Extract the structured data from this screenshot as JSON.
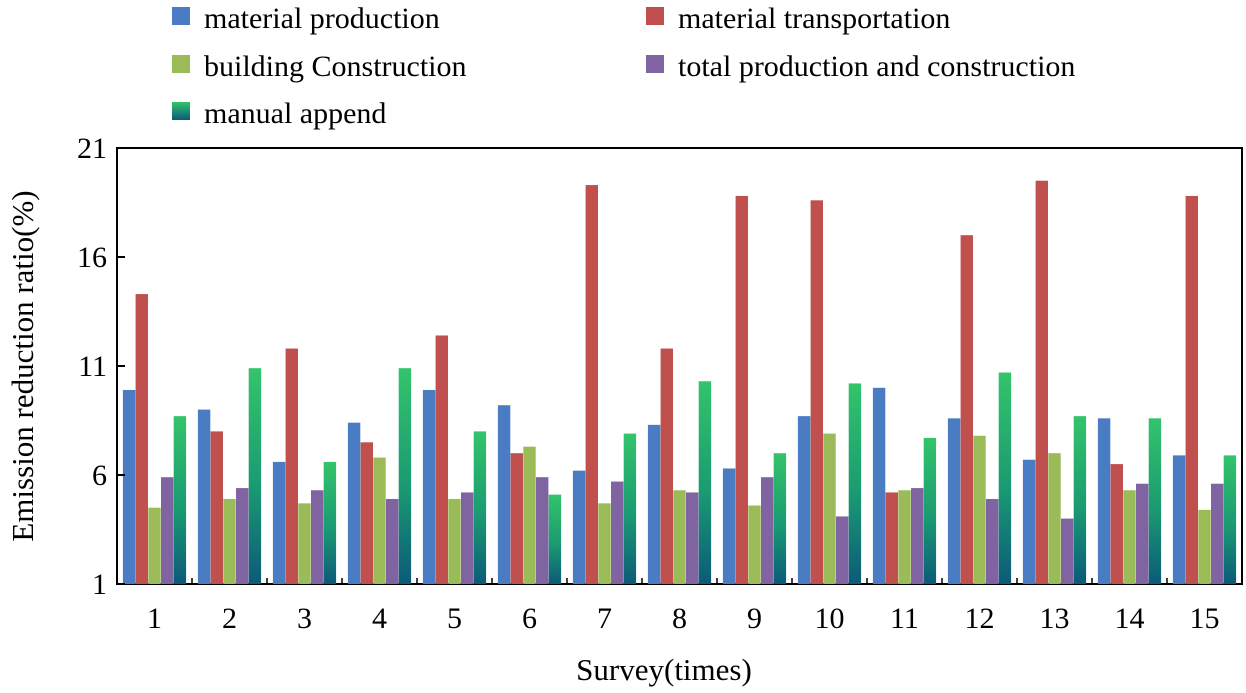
{
  "chart_data": {
    "type": "bar",
    "title": "",
    "xlabel": "Survey(times)",
    "ylabel": "Emission reduction ratio(%)",
    "ylim": [
      1,
      21
    ],
    "yticks": [
      "1",
      "6",
      "11",
      "16",
      "21"
    ],
    "categories": [
      "1",
      "2",
      "3",
      "4",
      "5",
      "6",
      "7",
      "8",
      "9",
      "10",
      "11",
      "12",
      "13",
      "14",
      "15"
    ],
    "legend_position": "top",
    "series": [
      {
        "name": "material production",
        "color": "#4a7cc4",
        "values": [
          9.9,
          9.0,
          6.6,
          8.4,
          9.9,
          9.2,
          6.2,
          8.3,
          6.3,
          8.7,
          10.0,
          8.6,
          6.7,
          8.6,
          6.9
        ]
      },
      {
        "name": "material transportation",
        "color": "#c0504d",
        "values": [
          14.3,
          8.0,
          11.8,
          7.5,
          12.4,
          7.0,
          19.3,
          11.8,
          18.8,
          18.6,
          5.2,
          17.0,
          19.5,
          6.5,
          18.8
        ]
      },
      {
        "name": "building Construction",
        "color": "#9bbb59",
        "values": [
          4.5,
          4.9,
          4.7,
          6.8,
          4.9,
          7.3,
          4.7,
          5.3,
          4.6,
          7.9,
          5.3,
          7.8,
          7.0,
          5.3,
          4.4
        ]
      },
      {
        "name": "total production and construction",
        "color": "#8064a2",
        "values": [
          5.9,
          5.4,
          5.3,
          4.9,
          5.2,
          5.9,
          5.7,
          5.2,
          5.9,
          4.1,
          5.4,
          4.9,
          4.0,
          5.6,
          5.6
        ]
      },
      {
        "name": "manual append",
        "color": "#2fb86a",
        "values": [
          8.7,
          10.9,
          6.6,
          10.9,
          8.0,
          5.1,
          7.9,
          10.3,
          7.0,
          10.2,
          7.7,
          10.7,
          8.7,
          8.6,
          6.9
        ]
      }
    ]
  }
}
